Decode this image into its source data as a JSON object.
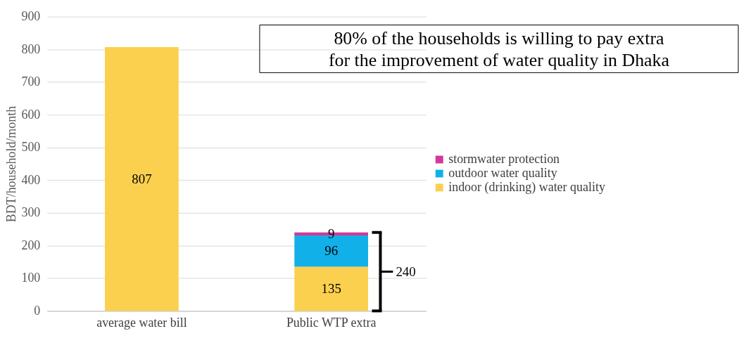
{
  "chart_data": {
    "type": "bar",
    "stacked": true,
    "categories": [
      "average water bill",
      "Public WTP extra"
    ],
    "series": [
      {
        "name": "indoor (drinking) water quality",
        "color": "#fcd04f",
        "values": [
          807,
          135
        ]
      },
      {
        "name": "outdoor water quality",
        "color": "#12b0e8",
        "values": [
          null,
          96
        ]
      },
      {
        "name": "stormwater protection",
        "color": "#d6369b",
        "values": [
          null,
          9
        ]
      }
    ],
    "ylabel": "BDT/household/month",
    "ylim": [
      0,
      900
    ],
    "yticks": [
      0,
      100,
      200,
      300,
      400,
      500,
      600,
      700,
      800,
      900
    ],
    "grid": "y",
    "legend": "right",
    "data_labels": true,
    "totals": [
      null,
      "240"
    ],
    "annotations": [
      "80% of the households is willing to pay extra\nfor the improvement of water quality in Dhaka"
    ]
  }
}
